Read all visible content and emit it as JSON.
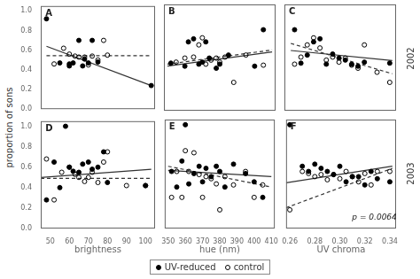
{
  "chart_data": {
    "type": "scatter",
    "ylabel": "proportion of sons",
    "row_labels": [
      "2002",
      "2003"
    ],
    "legend": "bottom",
    "grid": false,
    "panels": [
      {
        "title": "A",
        "tick_labels": "y",
        "xlim": [
          45,
          105
        ],
        "xticks": [
          50,
          60,
          70,
          80,
          90,
          100
        ],
        "ylim": [
          0.0,
          1.05
        ],
        "yticks": [
          {
            "value": 0.0,
            "label": "0.0"
          },
          0.2,
          0.4,
          0.6,
          0.8,
          {
            "value": 1.0,
            "label": "1.0"
          }
        ],
        "series": [
          {
            "name": "UV-reduced",
            "type": "scatter",
            "marker": "filled_circle",
            "color": "#000000",
            "x": [
              48,
              55,
              60,
              60,
              62,
              65,
              67,
              68,
              70,
              72,
              75,
              103
            ],
            "values": [
              0.92,
              0.47,
              0.46,
              0.44,
              0.47,
              0.7,
              0.44,
              0.51,
              0.47,
              0.7,
              0.48,
              0.24
            ]
          },
          {
            "name": "control",
            "type": "scatter",
            "marker": "open_circle",
            "color": "#000000",
            "x": [
              52,
              57,
              60,
              63,
              65,
              68,
              70,
              72,
              75,
              78,
              80
            ],
            "values": [
              0.46,
              0.62,
              0.56,
              0.54,
              0.53,
              0.53,
              0.45,
              0.54,
              0.5,
              0.7,
              0.55
            ]
          },
          {
            "type": "line",
            "line_style": "solid",
            "color": "#333333",
            "x": [
              48,
              103
            ],
            "values": [
              0.64,
              0.24
            ]
          },
          {
            "type": "line",
            "line_style": "dashed",
            "color": "#333333",
            "x": [
              48,
              103
            ],
            "values": [
              0.545,
              0.545
            ]
          }
        ]
      },
      {
        "title": "B",
        "tick_labels": false,
        "xlim": [
          348,
          412
        ],
        "xticks": [
          350,
          360,
          370,
          380,
          390,
          400,
          410
        ],
        "ylim": [
          0.0,
          1.05
        ],
        "yticks": [
          {
            "value": 0.0,
            "label": "0.0"
          },
          0.2,
          0.4,
          0.6,
          0.8,
          {
            "value": 1.0,
            "label": "1.0"
          }
        ],
        "series": [
          {
            "name": "UV-reduced",
            "type": "scatter",
            "marker": "filled_circle",
            "color": "#000000",
            "x": [
              352,
              360,
              362,
              365,
              368,
              370,
              372,
              374,
              378,
              380,
              385,
              400,
              405
            ],
            "values": [
              0.47,
              0.44,
              0.68,
              0.71,
              0.46,
              0.48,
              0.68,
              0.52,
              0.42,
              0.46,
              0.55,
              0.44,
              0.8
            ]
          },
          {
            "name": "control",
            "type": "scatter",
            "marker": "open_circle",
            "color": "#000000",
            "x": [
              355,
              360,
              365,
              368,
              370,
              372,
              375,
              378,
              380,
              383,
              388,
              395,
              405
            ],
            "values": [
              0.48,
              0.52,
              0.53,
              0.65,
              0.72,
              0.46,
              0.5,
              0.52,
              0.48,
              0.53,
              0.28,
              0.55,
              0.45
            ]
          },
          {
            "type": "line",
            "line_style": "solid",
            "color": "#333333",
            "x": [
              350,
              410
            ],
            "values": [
              0.44,
              0.58
            ]
          },
          {
            "type": "line",
            "line_style": "dashed",
            "color": "#333333",
            "x": [
              350,
              410
            ],
            "values": [
              0.46,
              0.6
            ]
          }
        ]
      },
      {
        "title": "C",
        "tick_labels": false,
        "xlim": [
          0.257,
          0.345
        ],
        "xticks": [
          0.26,
          0.28,
          {
            "value": 0.3,
            "label": "0.30"
          },
          0.32,
          0.34
        ],
        "ylim": [
          0.0,
          1.05
        ],
        "yticks": [
          {
            "value": 0.0,
            "label": "0.0"
          },
          0.2,
          0.4,
          0.6,
          0.8,
          {
            "value": 1.0,
            "label": "1.0"
          }
        ],
        "series": [
          {
            "name": "UV-reduced",
            "type": "scatter",
            "marker": "filled_circle",
            "color": "#000000",
            "x": [
              0.265,
              0.27,
              0.275,
              0.28,
              0.285,
              0.29,
              0.295,
              0.3,
              0.305,
              0.31,
              0.315,
              0.32,
              0.34
            ],
            "values": [
              0.8,
              0.47,
              0.55,
              0.68,
              0.71,
              0.46,
              0.56,
              0.52,
              0.5,
              0.46,
              0.44,
              0.48,
              0.47
            ]
          },
          {
            "name": "control",
            "type": "scatter",
            "marker": "open_circle",
            "color": "#000000",
            "x": [
              0.265,
              0.27,
              0.275,
              0.28,
              0.285,
              0.29,
              0.295,
              0.3,
              0.305,
              0.31,
              0.315,
              0.32,
              0.33,
              0.34
            ],
            "values": [
              0.46,
              0.53,
              0.65,
              0.72,
              0.62,
              0.5,
              0.53,
              0.48,
              0.52,
              0.45,
              0.42,
              0.65,
              0.38,
              0.28
            ]
          },
          {
            "type": "line",
            "line_style": "solid",
            "color": "#333333",
            "x": [
              0.262,
              0.342
            ],
            "values": [
              0.595,
              0.495
            ]
          },
          {
            "type": "line",
            "line_style": "dashed",
            "color": "#333333",
            "x": [
              0.262,
              0.342
            ],
            "values": [
              0.665,
              0.365
            ]
          }
        ]
      },
      {
        "title": "D",
        "tick_labels": true,
        "xlabel": "brightness",
        "xlim": [
          45,
          105
        ],
        "xticks": [
          50,
          60,
          70,
          80,
          90,
          100
        ],
        "ylim": [
          0.0,
          1.05
        ],
        "yticks": [
          {
            "value": 0.0,
            "label": "0.0"
          },
          0.2,
          0.4,
          0.6,
          0.8,
          {
            "value": 1.0,
            "label": "1.0"
          }
        ],
        "series": [
          {
            "name": "UV-reduced",
            "type": "scatter",
            "marker": "filled_circle",
            "color": "#000000",
            "x": [
              48,
              52,
              55,
              58,
              60,
              62,
              65,
              67,
              70,
              72,
              75,
              78,
              80,
              100
            ],
            "values": [
              0.28,
              0.65,
              0.4,
              1.0,
              0.6,
              0.56,
              0.55,
              0.63,
              0.65,
              0.58,
              0.6,
              0.75,
              0.45,
              0.42
            ]
          },
          {
            "name": "control",
            "type": "scatter",
            "marker": "open_circle",
            "color": "#000000",
            "x": [
              48,
              52,
              56,
              60,
              63,
              65,
              68,
              70,
              72,
              75,
              78,
              80,
              90,
              100
            ],
            "values": [
              0.68,
              0.28,
              0.55,
              0.6,
              0.53,
              0.5,
              0.46,
              0.5,
              0.55,
              0.45,
              0.65,
              0.75,
              0.42,
              0.42
            ]
          },
          {
            "type": "line",
            "line_style": "solid",
            "color": "#333333",
            "x": [
              45,
              103
            ],
            "values": [
              0.5,
              0.58
            ]
          },
          {
            "type": "line",
            "line_style": "dashed",
            "color": "#333333",
            "x": [
              45,
              103
            ],
            "values": [
              0.49,
              0.49
            ]
          }
        ]
      },
      {
        "title": "E",
        "tick_labels": "x",
        "xlabel": "hue (nm)",
        "xlim": [
          348,
          412
        ],
        "xticks": [
          350,
          360,
          370,
          380,
          390,
          400,
          410
        ],
        "ylim": [
          0.0,
          1.05
        ],
        "yticks": [
          {
            "value": 0.0,
            "label": "0.0"
          },
          0.2,
          0.4,
          0.6,
          0.8,
          {
            "value": 1.0,
            "label": "1.0"
          }
        ],
        "series": [
          {
            "name": "UV-reduced",
            "type": "scatter",
            "marker": "filled_circle",
            "color": "#000000",
            "x": [
              352,
              355,
              358,
              360,
              362,
              365,
              368,
              370,
              372,
              375,
              378,
              380,
              383,
              388,
              395,
              400,
              405
            ],
            "values": [
              0.55,
              0.4,
              0.65,
              1.0,
              0.43,
              0.53,
              0.6,
              0.45,
              0.58,
              0.5,
              0.6,
              0.55,
              0.4,
              0.62,
              0.53,
              0.45,
              0.3
            ]
          },
          {
            "name": "control",
            "type": "scatter",
            "marker": "open_circle",
            "color": "#000000",
            "x": [
              352,
              355,
              358,
              360,
              362,
              365,
              368,
              370,
              372,
              375,
              378,
              380,
              383,
              388,
              395,
              400,
              405
            ],
            "values": [
              0.3,
              0.55,
              0.3,
              0.75,
              0.55,
              0.73,
              0.52,
              0.3,
              0.5,
              0.48,
              0.43,
              0.18,
              0.5,
              0.42,
              0.55,
              0.3,
              0.42
            ]
          },
          {
            "type": "line",
            "line_style": "solid",
            "color": "#333333",
            "x": [
              350,
              410
            ],
            "values": [
              0.56,
              0.5
            ]
          },
          {
            "type": "line",
            "line_style": "dashed",
            "color": "#333333",
            "x": [
              350,
              410
            ],
            "values": [
              0.6,
              0.4
            ]
          }
        ]
      },
      {
        "title": "F",
        "tick_labels": "x",
        "xlabel": "UV chroma",
        "annotation": "p = 0.0064",
        "xlim": [
          0.257,
          0.345
        ],
        "xticks": [
          0.26,
          0.28,
          {
            "value": 0.3,
            "label": "0.30"
          },
          0.32,
          0.34
        ],
        "ylim": [
          0.0,
          1.05
        ],
        "yticks": [
          {
            "value": 0.0,
            "label": "0.0"
          },
          0.2,
          0.4,
          0.6,
          0.8,
          {
            "value": 1.0,
            "label": "1.0"
          }
        ],
        "series": [
          {
            "name": "UV-reduced",
            "type": "scatter",
            "marker": "filled_circle",
            "color": "#000000",
            "x": [
              0.26,
              0.27,
              0.275,
              0.28,
              0.285,
              0.29,
              0.295,
              0.3,
              0.305,
              0.31,
              0.315,
              0.32,
              0.325,
              0.33,
              0.34
            ],
            "values": [
              1.0,
              0.6,
              0.55,
              0.62,
              0.58,
              0.55,
              0.52,
              0.6,
              0.45,
              0.5,
              0.5,
              0.42,
              0.55,
              0.48,
              0.45
            ]
          },
          {
            "name": "control",
            "type": "scatter",
            "marker": "open_circle",
            "color": "#000000",
            "x": [
              0.26,
              0.27,
              0.275,
              0.28,
              0.285,
              0.29,
              0.295,
              0.3,
              0.305,
              0.31,
              0.315,
              0.32,
              0.325,
              0.33,
              0.34
            ],
            "values": [
              0.18,
              0.55,
              0.53,
              0.5,
              0.52,
              0.47,
              0.52,
              0.48,
              0.55,
              0.5,
              0.45,
              0.53,
              0.42,
              0.55,
              0.55
            ]
          },
          {
            "type": "line",
            "line_style": "solid",
            "color": "#333333",
            "x": [
              0.257,
              0.342
            ],
            "values": [
              0.44,
              0.6
            ]
          },
          {
            "type": "line",
            "line_style": "dashed",
            "color": "#333333",
            "x": [
              0.257,
              0.342
            ],
            "values": [
              0.2,
              0.58
            ]
          }
        ]
      }
    ]
  }
}
